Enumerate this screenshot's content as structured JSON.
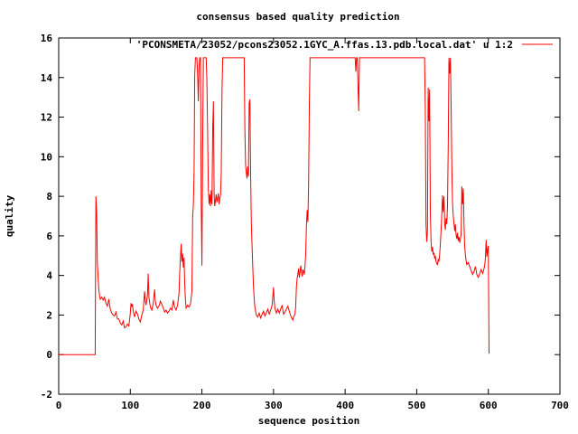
{
  "title": "consensus based quality prediction",
  "legend": {
    "label": "'PCONSMETA/23052/pcons23052.1GYC_A.ffas.13.pdb.local.dat' u 1:2"
  },
  "colors": {
    "line": "#ff0000",
    "axis": "#000000",
    "background": "#ffffff"
  },
  "axes": {
    "x": {
      "label": "sequence position",
      "min": 0,
      "max": 700,
      "ticks": [
        0,
        100,
        200,
        300,
        400,
        500,
        600,
        700
      ]
    },
    "y": {
      "label": "quality",
      "min": -2,
      "max": 16,
      "ticks": [
        -2,
        0,
        2,
        4,
        6,
        8,
        10,
        12,
        14,
        16
      ]
    }
  },
  "chart_data": {
    "type": "line",
    "title": "consensus based quality prediction",
    "xlabel": "sequence position",
    "ylabel": "quality",
    "xlim": [
      0,
      700
    ],
    "ylim": [
      -2,
      16
    ],
    "grid": false,
    "legend_position": "top-right-inside",
    "series": [
      {
        "name": "'PCONSMETA/23052/pcons23052.1GYC_A.ffas.13.pdb.local.dat' u 1:2",
        "color": "#ff0000",
        "points": [
          [
            0,
            0
          ],
          [
            10,
            0
          ],
          [
            20,
            0
          ],
          [
            30,
            0
          ],
          [
            40,
            0
          ],
          [
            50,
            0
          ],
          [
            51,
            0
          ],
          [
            52,
            8.0
          ],
          [
            53,
            7.2
          ],
          [
            54,
            4.6
          ],
          [
            55,
            4.0
          ],
          [
            56,
            3.3
          ],
          [
            57,
            3.0
          ],
          [
            58,
            2.8
          ],
          [
            60,
            2.9
          ],
          [
            62,
            2.75
          ],
          [
            64,
            2.9
          ],
          [
            66,
            2.6
          ],
          [
            68,
            2.45
          ],
          [
            70,
            2.8
          ],
          [
            72,
            2.3
          ],
          [
            74,
            2.1
          ],
          [
            76,
            2.0
          ],
          [
            78,
            1.95
          ],
          [
            80,
            2.15
          ],
          [
            82,
            1.8
          ],
          [
            84,
            1.8
          ],
          [
            86,
            1.6
          ],
          [
            88,
            1.5
          ],
          [
            90,
            1.7
          ],
          [
            92,
            1.35
          ],
          [
            94,
            1.4
          ],
          [
            96,
            1.55
          ],
          [
            98,
            1.45
          ],
          [
            100,
            2.1
          ],
          [
            101,
            2.6
          ],
          [
            102,
            2.45
          ],
          [
            103,
            2.55
          ],
          [
            104,
            2.2
          ],
          [
            106,
            1.9
          ],
          [
            108,
            2.2
          ],
          [
            110,
            2.05
          ],
          [
            112,
            1.8
          ],
          [
            114,
            1.65
          ],
          [
            116,
            2.0
          ],
          [
            118,
            2.25
          ],
          [
            120,
            3.2
          ],
          [
            121,
            2.7
          ],
          [
            122,
            2.5
          ],
          [
            124,
            3.0
          ],
          [
            125,
            4.1
          ],
          [
            126,
            2.9
          ],
          [
            128,
            2.4
          ],
          [
            130,
            2.25
          ],
          [
            132,
            2.6
          ],
          [
            134,
            3.3
          ],
          [
            135,
            2.7
          ],
          [
            136,
            2.5
          ],
          [
            138,
            2.35
          ],
          [
            140,
            2.45
          ],
          [
            142,
            2.7
          ],
          [
            144,
            2.55
          ],
          [
            146,
            2.35
          ],
          [
            148,
            2.15
          ],
          [
            150,
            2.25
          ],
          [
            152,
            2.1
          ],
          [
            154,
            2.2
          ],
          [
            156,
            2.35
          ],
          [
            158,
            2.25
          ],
          [
            160,
            2.75
          ],
          [
            161,
            2.5
          ],
          [
            162,
            2.4
          ],
          [
            164,
            2.25
          ],
          [
            166,
            2.5
          ],
          [
            168,
            3.1
          ],
          [
            169,
            4.2
          ],
          [
            170,
            4.9
          ],
          [
            171,
            5.6
          ],
          [
            172,
            4.7
          ],
          [
            173,
            5.1
          ],
          [
            174,
            4.4
          ],
          [
            175,
            4.9
          ],
          [
            176,
            3.6
          ],
          [
            177,
            2.8
          ],
          [
            178,
            2.35
          ],
          [
            180,
            2.5
          ],
          [
            182,
            2.4
          ],
          [
            184,
            2.55
          ],
          [
            186,
            3.2
          ],
          [
            187,
            6.9
          ],
          [
            188,
            7.6
          ],
          [
            189,
            9.2
          ],
          [
            190,
            14.1
          ],
          [
            191,
            15
          ],
          [
            193,
            15
          ],
          [
            194,
            14.2
          ],
          [
            195,
            12.8
          ],
          [
            196,
            14.5
          ],
          [
            197,
            15
          ],
          [
            198,
            15
          ],
          [
            199,
            7.6
          ],
          [
            200,
            4.5
          ],
          [
            201,
            10.5
          ],
          [
            202,
            15
          ],
          [
            204,
            15
          ],
          [
            206,
            15
          ],
          [
            207,
            13.8
          ],
          [
            208,
            11.2
          ],
          [
            209,
            8.4
          ],
          [
            210,
            7.6
          ],
          [
            211,
            8.1
          ],
          [
            212,
            7.5
          ],
          [
            213,
            8.3
          ],
          [
            214,
            7.6
          ],
          [
            215,
            11.3
          ],
          [
            216,
            12.8
          ],
          [
            217,
            8.1
          ],
          [
            218,
            7.5
          ],
          [
            219,
            7.8
          ],
          [
            220,
            8.1
          ],
          [
            221,
            7.7
          ],
          [
            222,
            7.9
          ],
          [
            223,
            8.15
          ],
          [
            224,
            7.6
          ],
          [
            225,
            7.9
          ],
          [
            226,
            8.05
          ],
          [
            227,
            9.2
          ],
          [
            228,
            13.2
          ],
          [
            229,
            15
          ],
          [
            233,
            15
          ],
          [
            238,
            15
          ],
          [
            243,
            15
          ],
          [
            248,
            15
          ],
          [
            253,
            15
          ],
          [
            258,
            15
          ],
          [
            259,
            15
          ],
          [
            260,
            11.5
          ],
          [
            261,
            9.6
          ],
          [
            262,
            9.2
          ],
          [
            263,
            8.9
          ],
          [
            264,
            9.5
          ],
          [
            265,
            9.0
          ],
          [
            266,
            12.7
          ],
          [
            267,
            12.9
          ],
          [
            268,
            9.2
          ],
          [
            269,
            6.6
          ],
          [
            270,
            5.5
          ],
          [
            271,
            4.4
          ],
          [
            272,
            3.4
          ],
          [
            273,
            2.8
          ],
          [
            274,
            2.4
          ],
          [
            276,
            2.0
          ],
          [
            278,
            1.9
          ],
          [
            280,
            2.1
          ],
          [
            282,
            1.85
          ],
          [
            284,
            2.05
          ],
          [
            286,
            2.2
          ],
          [
            288,
            1.95
          ],
          [
            290,
            2.1
          ],
          [
            292,
            2.3
          ],
          [
            294,
            2.05
          ],
          [
            296,
            2.25
          ],
          [
            298,
            2.5
          ],
          [
            300,
            3.4
          ],
          [
            301,
            2.7
          ],
          [
            302,
            2.35
          ],
          [
            304,
            2.1
          ],
          [
            306,
            2.3
          ],
          [
            308,
            2.1
          ],
          [
            310,
            2.3
          ],
          [
            312,
            2.5
          ],
          [
            313,
            2.25
          ],
          [
            314,
            2.05
          ],
          [
            316,
            2.15
          ],
          [
            318,
            2.3
          ],
          [
            320,
            2.45
          ],
          [
            322,
            2.2
          ],
          [
            324,
            1.95
          ],
          [
            326,
            1.8
          ],
          [
            327,
            1.75
          ],
          [
            328,
            1.9
          ],
          [
            330,
            2.05
          ],
          [
            331,
            2.4
          ],
          [
            332,
            3.4
          ],
          [
            333,
            3.85
          ],
          [
            334,
            4.05
          ],
          [
            335,
            4.35
          ],
          [
            336,
            3.9
          ],
          [
            337,
            4.15
          ],
          [
            338,
            4.5
          ],
          [
            339,
            4.2
          ],
          [
            340,
            3.95
          ],
          [
            341,
            4.3
          ],
          [
            342,
            4.2
          ],
          [
            343,
            4.05
          ],
          [
            344,
            4.45
          ],
          [
            345,
            5.1
          ],
          [
            346,
            6.5
          ],
          [
            347,
            7.3
          ],
          [
            348,
            6.7
          ],
          [
            349,
            8.6
          ],
          [
            350,
            12.5
          ],
          [
            351,
            15
          ],
          [
            360,
            15
          ],
          [
            370,
            15
          ],
          [
            380,
            15
          ],
          [
            390,
            15
          ],
          [
            400,
            15
          ],
          [
            410,
            15
          ],
          [
            414,
            15
          ],
          [
            415,
            14.3
          ],
          [
            416,
            15
          ],
          [
            417,
            15
          ],
          [
            418,
            13.6
          ],
          [
            419,
            12.3
          ],
          [
            420,
            15
          ],
          [
            430,
            15
          ],
          [
            440,
            15
          ],
          [
            450,
            15
          ],
          [
            460,
            15
          ],
          [
            470,
            15
          ],
          [
            480,
            15
          ],
          [
            490,
            15
          ],
          [
            500,
            15
          ],
          [
            506,
            15
          ],
          [
            511,
            15
          ],
          [
            512,
            12.5
          ],
          [
            513,
            6.6
          ],
          [
            514,
            5.7
          ],
          [
            515,
            6.2
          ],
          [
            516,
            13.5
          ],
          [
            517,
            11.8
          ],
          [
            518,
            13.4
          ],
          [
            519,
            7.2
          ],
          [
            520,
            5.7
          ],
          [
            521,
            5.2
          ],
          [
            522,
            5.45
          ],
          [
            523,
            5.05
          ],
          [
            524,
            5.15
          ],
          [
            525,
            4.85
          ],
          [
            526,
            5.0
          ],
          [
            527,
            4.7
          ],
          [
            528,
            4.6
          ],
          [
            529,
            4.55
          ],
          [
            530,
            4.8
          ],
          [
            531,
            4.7
          ],
          [
            532,
            5.05
          ],
          [
            533,
            5.6
          ],
          [
            534,
            6.3
          ],
          [
            535,
            7.1
          ],
          [
            536,
            8.05
          ],
          [
            537,
            7.2
          ],
          [
            538,
            8.0
          ],
          [
            539,
            6.6
          ],
          [
            540,
            6.3
          ],
          [
            541,
            6.9
          ],
          [
            542,
            6.6
          ],
          [
            543,
            7.5
          ],
          [
            544,
            10.5
          ],
          [
            545,
            15
          ],
          [
            546,
            14.2
          ],
          [
            547,
            15
          ],
          [
            548,
            12.6
          ],
          [
            549,
            9.5
          ],
          [
            550,
            7.6
          ],
          [
            551,
            7.0
          ],
          [
            552,
            6.6
          ],
          [
            553,
            6.25
          ],
          [
            554,
            6.6
          ],
          [
            555,
            6.05
          ],
          [
            556,
            5.85
          ],
          [
            557,
            6.15
          ],
          [
            558,
            5.75
          ],
          [
            559,
            5.95
          ],
          [
            560,
            5.65
          ],
          [
            561,
            5.85
          ],
          [
            562,
            6.1
          ],
          [
            563,
            8.5
          ],
          [
            564,
            7.6
          ],
          [
            565,
            8.4
          ],
          [
            566,
            6.6
          ],
          [
            567,
            5.5
          ],
          [
            568,
            5.05
          ],
          [
            569,
            4.75
          ],
          [
            570,
            4.55
          ],
          [
            572,
            4.65
          ],
          [
            574,
            4.45
          ],
          [
            576,
            4.25
          ],
          [
            578,
            4.05
          ],
          [
            580,
            4.2
          ],
          [
            582,
            4.45
          ],
          [
            583,
            4.25
          ],
          [
            584,
            4.05
          ],
          [
            586,
            3.9
          ],
          [
            588,
            4.1
          ],
          [
            590,
            4.3
          ],
          [
            592,
            4.1
          ],
          [
            594,
            4.35
          ],
          [
            595,
            4.55
          ],
          [
            596,
            4.9
          ],
          [
            597,
            5.8
          ],
          [
            598,
            4.95
          ],
          [
            599,
            5.3
          ],
          [
            600,
            5.5
          ],
          [
            601,
            0.05
          ]
        ]
      }
    ]
  }
}
